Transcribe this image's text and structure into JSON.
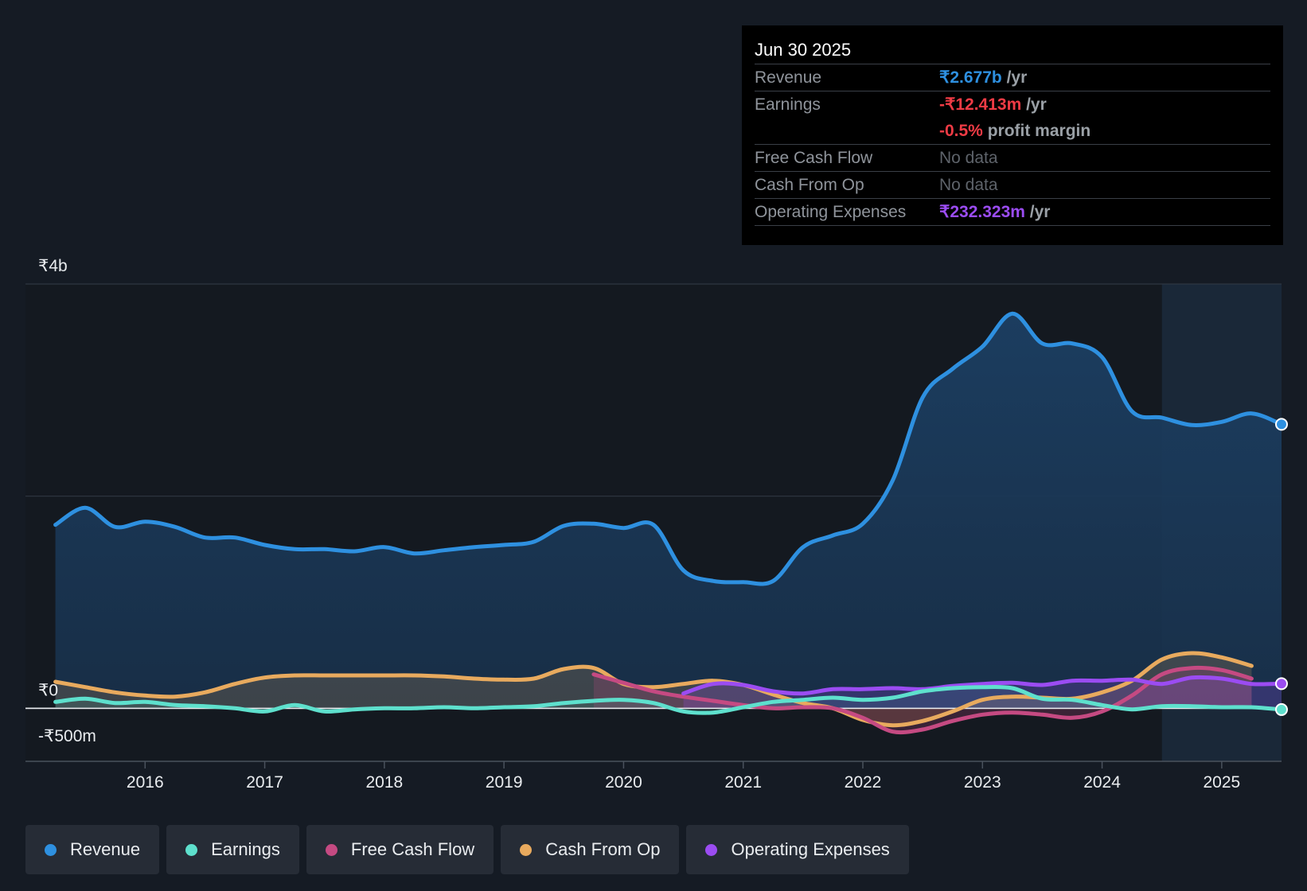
{
  "tooltip": {
    "date": "Jun 30 2025",
    "rows": {
      "revenue": {
        "label": "Revenue",
        "value": "₹2.677b",
        "unit": " /yr"
      },
      "earnings": {
        "label": "Earnings",
        "value": "-₹12.413m",
        "unit": " /yr"
      },
      "margin": {
        "value": "-0.5%",
        "unit": " profit margin"
      },
      "fcf": {
        "label": "Free Cash Flow",
        "value": "No data"
      },
      "cfo": {
        "label": "Cash From Op",
        "value": "No data"
      },
      "opex": {
        "label": "Operating Expenses",
        "value": "₹232.323m",
        "unit": " /yr"
      }
    }
  },
  "colors": {
    "revenue": "#2e90e0",
    "earnings": "#5ee0cd",
    "free_cash_flow": "#c54a82",
    "cash_from_op": "#e8aa5e",
    "operating_expenses": "#9b4cf2",
    "negative": "#ef3b45"
  },
  "legend": [
    {
      "label": "Revenue",
      "color": "#2e90e0"
    },
    {
      "label": "Earnings",
      "color": "#5ee0cd"
    },
    {
      "label": "Free Cash Flow",
      "color": "#c54a82"
    },
    {
      "label": "Cash From Op",
      "color": "#e8aa5e"
    },
    {
      "label": "Operating Expenses",
      "color": "#9b4cf2"
    }
  ],
  "chart_data": {
    "type": "area",
    "title": "",
    "xlabel": "",
    "ylabel": "",
    "currency": "₹",
    "ylim": [
      -500,
      4000
    ],
    "y_unit": "million INR",
    "y_tick_labels": [
      {
        "value": 4000,
        "label": "₹4b"
      },
      {
        "value": 0,
        "label": "₹0"
      },
      {
        "value": -500,
        "label": "-₹500m"
      }
    ],
    "gridlines": [
      4000,
      2000,
      0
    ],
    "xlim": [
      2015.0,
      2025.5
    ],
    "x_ticks": [
      2016,
      2017,
      2018,
      2019,
      2020,
      2021,
      2022,
      2023,
      2024,
      2025
    ],
    "forecast_region_start": 2024.5,
    "series": [
      {
        "name": "Revenue",
        "key": "revenue",
        "x": [
          2015.25,
          2015.5,
          2015.75,
          2016.0,
          2016.25,
          2016.5,
          2016.75,
          2017.0,
          2017.25,
          2017.5,
          2017.75,
          2018.0,
          2018.25,
          2018.5,
          2018.75,
          2019.0,
          2019.25,
          2019.5,
          2019.75,
          2020.0,
          2020.25,
          2020.5,
          2020.75,
          2021.0,
          2021.25,
          2021.5,
          2021.75,
          2022.0,
          2022.25,
          2022.5,
          2022.75,
          2023.0,
          2023.25,
          2023.5,
          2023.75,
          2024.0,
          2024.25,
          2024.5,
          2024.75,
          2025.0,
          2025.25,
          2025.5
        ],
        "values": [
          1730,
          1890,
          1710,
          1760,
          1710,
          1610,
          1610,
          1540,
          1500,
          1500,
          1480,
          1520,
          1460,
          1490,
          1520,
          1540,
          1570,
          1720,
          1740,
          1700,
          1730,
          1300,
          1200,
          1190,
          1200,
          1520,
          1630,
          1740,
          2150,
          2930,
          3200,
          3410,
          3720,
          3440,
          3440,
          3310,
          2800,
          2740,
          2670,
          2700,
          2780,
          2677
        ]
      },
      {
        "name": "Earnings",
        "key": "earnings",
        "x": [
          2015.25,
          2015.5,
          2015.75,
          2016.0,
          2016.25,
          2016.5,
          2016.75,
          2017.0,
          2017.25,
          2017.5,
          2017.75,
          2018.0,
          2018.25,
          2018.5,
          2018.75,
          2019.0,
          2019.25,
          2019.5,
          2019.75,
          2020.0,
          2020.25,
          2020.5,
          2020.75,
          2021.0,
          2021.25,
          2021.5,
          2021.75,
          2022.0,
          2022.25,
          2022.5,
          2022.75,
          2023.0,
          2023.25,
          2023.5,
          2023.75,
          2024.0,
          2024.25,
          2024.5,
          2024.75,
          2025.0,
          2025.25,
          2025.5
        ],
        "values": [
          60,
          90,
          50,
          60,
          30,
          20,
          0,
          -30,
          30,
          -30,
          -10,
          0,
          0,
          10,
          0,
          10,
          20,
          50,
          70,
          80,
          50,
          -30,
          -40,
          10,
          60,
          80,
          100,
          80,
          100,
          160,
          190,
          200,
          190,
          90,
          80,
          30,
          -10,
          20,
          20,
          10,
          10,
          -12
        ]
      },
      {
        "name": "Free Cash Flow",
        "key": "free_cash_flow",
        "x": [
          2019.75,
          2020.0,
          2020.25,
          2020.5,
          2020.75,
          2021.0,
          2021.25,
          2021.5,
          2021.75,
          2022.0,
          2022.25,
          2022.5,
          2022.75,
          2023.0,
          2023.25,
          2023.5,
          2023.75,
          2024.0,
          2024.25,
          2024.5,
          2024.75,
          2025.0,
          2025.25
        ],
        "values": [
          320,
          240,
          160,
          110,
          70,
          30,
          0,
          10,
          0,
          -90,
          -220,
          -200,
          -120,
          -60,
          -40,
          -60,
          -90,
          -30,
          120,
          320,
          380,
          360,
          280
        ]
      },
      {
        "name": "Cash From Op",
        "key": "cash_from_op",
        "x": [
          2015.25,
          2015.5,
          2015.75,
          2016.0,
          2016.25,
          2016.5,
          2016.75,
          2017.0,
          2017.25,
          2017.5,
          2017.75,
          2018.0,
          2018.25,
          2018.5,
          2018.75,
          2019.0,
          2019.25,
          2019.5,
          2019.75,
          2020.0,
          2020.25,
          2020.5,
          2020.75,
          2021.0,
          2021.25,
          2021.5,
          2021.75,
          2022.0,
          2022.25,
          2022.5,
          2022.75,
          2023.0,
          2023.25,
          2023.5,
          2023.75,
          2024.0,
          2024.25,
          2024.5,
          2024.75,
          2025.0,
          2025.25
        ],
        "values": [
          250,
          200,
          150,
          120,
          110,
          150,
          230,
          290,
          310,
          310,
          310,
          310,
          310,
          300,
          280,
          270,
          280,
          370,
          380,
          230,
          200,
          230,
          260,
          220,
          130,
          50,
          0,
          -110,
          -160,
          -120,
          -30,
          80,
          110,
          100,
          90,
          150,
          260,
          460,
          520,
          480,
          400
        ]
      },
      {
        "name": "Operating Expenses",
        "key": "operating_expenses",
        "x": [
          2020.5,
          2020.75,
          2021.0,
          2021.25,
          2021.5,
          2021.75,
          2022.0,
          2022.25,
          2022.5,
          2022.75,
          2023.0,
          2023.25,
          2023.5,
          2023.75,
          2024.0,
          2024.25,
          2024.5,
          2024.75,
          2025.0,
          2025.25,
          2025.5
        ],
        "values": [
          140,
          230,
          220,
          160,
          140,
          180,
          180,
          190,
          180,
          210,
          230,
          240,
          220,
          260,
          260,
          270,
          230,
          290,
          280,
          230,
          232
        ]
      }
    ]
  }
}
